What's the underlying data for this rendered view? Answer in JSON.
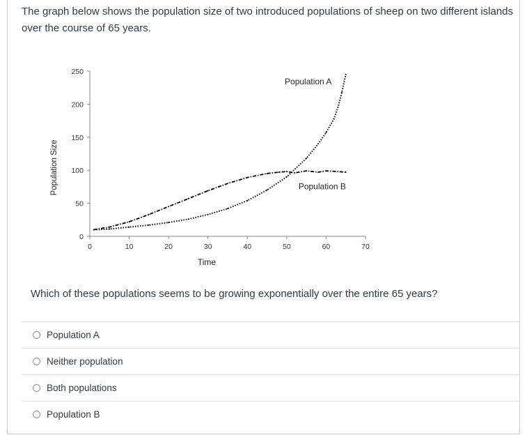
{
  "intro": "The graph below shows the population size of two introduced populations of sheep on two different islands over the course of 65 years.",
  "question": "Which of these populations seems to be growing exponentially over the entire 65 years?",
  "answers": [
    {
      "label": "Population A"
    },
    {
      "label": "Neither population"
    },
    {
      "label": "Both populations"
    },
    {
      "label": "Population B"
    }
  ],
  "chart_data": {
    "type": "line",
    "xlabel": "Time",
    "ylabel": "Population Size",
    "xlim": [
      0,
      70
    ],
    "ylim": [
      0,
      250
    ],
    "xticks": [
      0,
      10,
      20,
      30,
      40,
      50,
      60,
      70
    ],
    "yticks": [
      0,
      50,
      100,
      150,
      200,
      250
    ],
    "grid": false,
    "annotations": [
      {
        "text": "Population A",
        "series": 0
      },
      {
        "text": "Population B",
        "series": 1
      }
    ],
    "series": [
      {
        "name": "Population A",
        "style": "dotted",
        "x": [
          1,
          5,
          10,
          15,
          20,
          25,
          30,
          35,
          40,
          45,
          50,
          55,
          58,
          60,
          62,
          63,
          64,
          65
        ],
        "y": [
          10,
          11,
          14,
          17,
          21,
          26,
          33,
          42,
          54,
          70,
          90,
          118,
          140,
          157,
          178,
          195,
          218,
          245
        ]
      },
      {
        "name": "Population B",
        "style": "dash-dot",
        "x": [
          1,
          5,
          10,
          15,
          20,
          25,
          30,
          35,
          40,
          45,
          48,
          50,
          52,
          55,
          58,
          60,
          63,
          65
        ],
        "y": [
          10,
          14,
          22,
          33,
          45,
          57,
          69,
          80,
          89,
          95,
          97,
          98,
          96,
          99,
          97,
          99,
          98,
          97
        ]
      }
    ],
    "color": "#000000"
  }
}
